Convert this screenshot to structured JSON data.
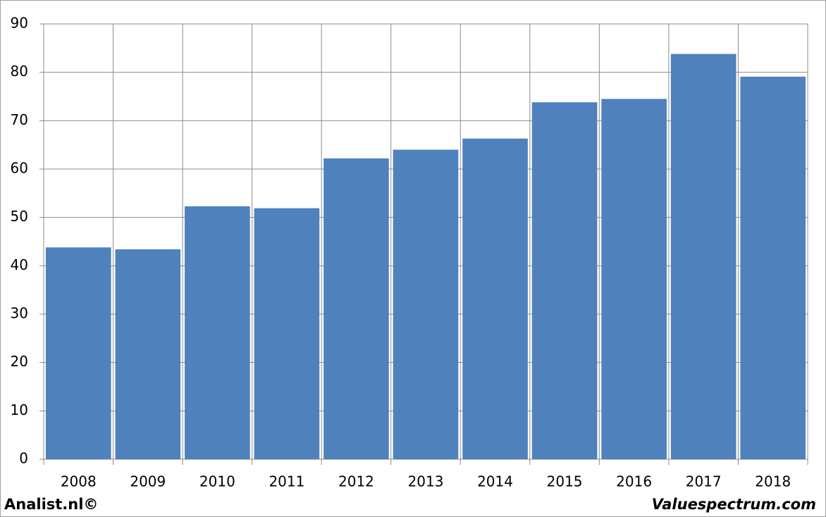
{
  "chart_data": {
    "type": "bar",
    "categories": [
      "2008",
      "2009",
      "2010",
      "2011",
      "2012",
      "2013",
      "2014",
      "2015",
      "2016",
      "2017",
      "2018"
    ],
    "values": [
      43.8,
      43.4,
      52.3,
      51.9,
      62.2,
      64.0,
      66.3,
      73.8,
      74.5,
      83.8,
      79.1
    ],
    "color": "#4f81bd",
    "ylim": [
      0,
      90
    ],
    "yticks": [
      0,
      10,
      20,
      30,
      40,
      50,
      60,
      70,
      80,
      90
    ],
    "grid": true,
    "annotations": [
      "Analist.nl©",
      "Valuespectrum.com"
    ]
  }
}
